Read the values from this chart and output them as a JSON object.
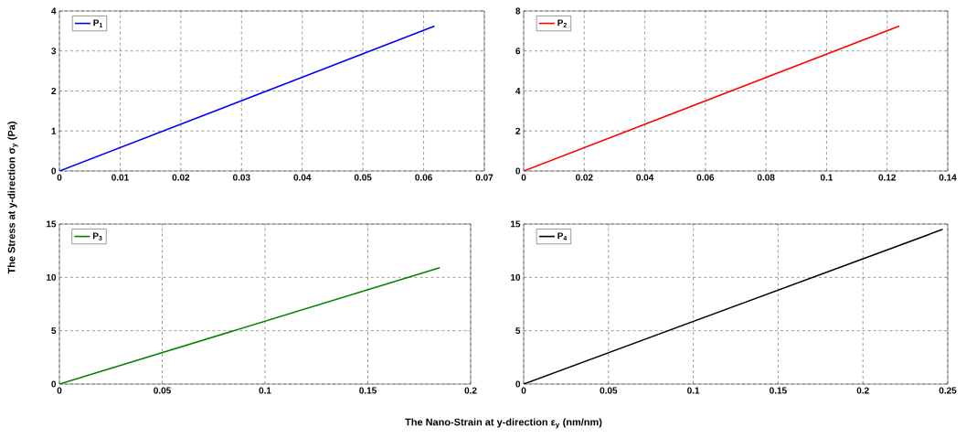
{
  "chart_data": [
    {
      "type": "line",
      "ylabel": "The Stress at y-direction σ$_{y}$ (Pa)",
      "x": [
        0,
        0.0618
      ],
      "series": [
        {
          "name": "P$_{1}$",
          "color": "#0000ff",
          "values": [
            0,
            3.62
          ]
        }
      ],
      "xlim": [
        0,
        0.07
      ],
      "ylim": [
        0,
        4
      ],
      "xticks": [
        0,
        0.01,
        0.02,
        0.03,
        0.04,
        0.05,
        0.06,
        0.07
      ],
      "yticks": [
        0,
        1,
        2,
        3,
        4
      ],
      "grid": true,
      "legend": "top left",
      "line_style": "solid",
      "marker": "none"
    },
    {
      "type": "line",
      "x": [
        0,
        0.124
      ],
      "series": [
        {
          "name": "P$_{2}$",
          "color": "#ff0000",
          "values": [
            0,
            7.25
          ]
        }
      ],
      "xlim": [
        0,
        0.14
      ],
      "ylim": [
        0,
        8
      ],
      "xticks": [
        0,
        0.02,
        0.04,
        0.06,
        0.08,
        0.1,
        0.12,
        0.14
      ],
      "yticks": [
        0,
        2,
        4,
        6,
        8
      ],
      "grid": true,
      "legend": "top left",
      "line_style": "solid",
      "marker": "none"
    },
    {
      "type": "line",
      "xlabel": "The Nano-Strain at y-direction ε$_{y}$ (nm/nm)",
      "x": [
        0,
        0.185
      ],
      "series": [
        {
          "name": "P$_{3}$",
          "color": "#008000",
          "values": [
            0,
            10.9
          ]
        }
      ],
      "xlim": [
        0,
        0.2
      ],
      "ylim": [
        0,
        15
      ],
      "xticks": [
        0,
        0.05,
        0.1,
        0.15,
        0.2
      ],
      "yticks": [
        0,
        5,
        10,
        15
      ],
      "grid": true,
      "legend": "top left",
      "line_style": "solid",
      "marker": "none"
    },
    {
      "type": "line",
      "x": [
        0,
        0.247
      ],
      "series": [
        {
          "name": "P$_{4}$",
          "color": "#000000",
          "values": [
            0,
            14.5
          ]
        }
      ],
      "xlim": [
        0,
        0.25
      ],
      "ylim": [
        0,
        15
      ],
      "xticks": [
        0,
        0.05,
        0.1,
        0.15,
        0.2,
        0.25
      ],
      "yticks": [
        0,
        5,
        10,
        15
      ],
      "grid": true,
      "legend": "top left",
      "line_style": "solid",
      "marker": "none"
    }
  ]
}
